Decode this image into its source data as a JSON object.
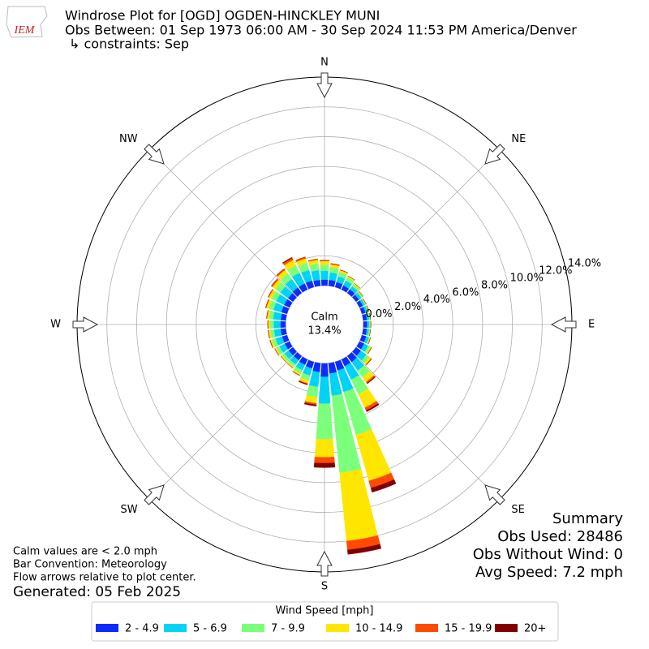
{
  "chart_data": {
    "type": "windrose",
    "title": "Windrose Plot for [OGD] OGDEN-HINCKLEY MUNI",
    "subtitle": "Obs Between: 01 Sep 1973 06:00 AM - 30 Sep 2024 11:53 PM America/Denver",
    "constraints": "↳ constraints: Sep",
    "logo": "IEM",
    "compass": [
      "N",
      "NE",
      "E",
      "SE",
      "S",
      "SW",
      "W",
      "NW"
    ],
    "directions": [
      0,
      10,
      20,
      30,
      40,
      50,
      60,
      70,
      80,
      90,
      100,
      110,
      120,
      130,
      140,
      150,
      160,
      170,
      180,
      190,
      200,
      210,
      220,
      230,
      240,
      250,
      260,
      270,
      280,
      290,
      300,
      310,
      320,
      330,
      340,
      350
    ],
    "rlim": [
      0,
      14
    ],
    "rticks": [
      {
        "value": 0,
        "label": "0.0%"
      },
      {
        "value": 2,
        "label": "2.0%"
      },
      {
        "value": 4,
        "label": "4.0%"
      },
      {
        "value": 6,
        "label": "6.0%"
      },
      {
        "value": 8,
        "label": "8.0%"
      },
      {
        "value": 10,
        "label": "10.0%"
      },
      {
        "value": 12,
        "label": "12.0%"
      },
      {
        "value": 14,
        "label": "14.0%"
      }
    ],
    "grid": true,
    "calm": {
      "name": "Calm",
      "value": 13.4,
      "value_label": "13.4%"
    },
    "legend_title": "Wind Speed [mph]",
    "series": [
      {
        "name": "2 - 4.9",
        "color": "#0c2cf8",
        "values": [
          0.4,
          0.4,
          0.35,
          0.3,
          0.3,
          0.25,
          0.25,
          0.25,
          0.25,
          0.25,
          0.25,
          0.3,
          0.35,
          0.4,
          0.5,
          0.5,
          0.6,
          0.7,
          0.9,
          0.6,
          0.45,
          0.4,
          0.35,
          0.35,
          0.35,
          0.35,
          0.35,
          0.35,
          0.35,
          0.4,
          0.4,
          0.4,
          0.45,
          0.45,
          0.45,
          0.4
        ]
      },
      {
        "name": "5 - 6.9",
        "color": "#00d3f5",
        "values": [
          0.6,
          0.5,
          0.4,
          0.35,
          0.25,
          0.2,
          0.15,
          0.15,
          0.15,
          0.15,
          0.15,
          0.18,
          0.3,
          0.45,
          0.7,
          1.0,
          1.5,
          1.5,
          1.8,
          1.0,
          0.5,
          0.4,
          0.35,
          0.35,
          0.4,
          0.45,
          0.45,
          0.45,
          0.5,
          0.55,
          0.6,
          0.65,
          0.7,
          0.8,
          0.75,
          0.65
        ]
      },
      {
        "name": "7 - 9.9",
        "color": "#7cff7a",
        "values": [
          0.4,
          0.35,
          0.3,
          0.25,
          0.15,
          0.1,
          0.07,
          0.07,
          0.07,
          0.07,
          0.07,
          0.08,
          0.15,
          0.25,
          0.55,
          1.1,
          3.0,
          5.2,
          2.4,
          0.7,
          0.35,
          0.25,
          0.2,
          0.2,
          0.22,
          0.25,
          0.25,
          0.25,
          0.28,
          0.33,
          0.35,
          0.4,
          0.45,
          0.55,
          0.5,
          0.45
        ]
      },
      {
        "name": "10 - 14.9",
        "color": "#ffe600",
        "values": [
          0.25,
          0.2,
          0.13,
          0.1,
          0.1,
          0.05,
          0.03,
          0.03,
          0.03,
          0.03,
          0.03,
          0.04,
          0.08,
          0.15,
          0.4,
          1.0,
          3.2,
          4.6,
          1.2,
          0.4,
          0.2,
          0.12,
          0.1,
          0.1,
          0.11,
          0.12,
          0.12,
          0.12,
          0.14,
          0.17,
          0.2,
          0.25,
          0.3,
          0.4,
          0.3,
          0.25
        ]
      },
      {
        "name": "15 - 19.9",
        "color": "#ff4a00",
        "values": [
          0.05,
          0.05,
          0.02,
          0,
          0,
          0,
          0,
          0,
          0,
          0,
          0,
          0,
          0.02,
          0.05,
          0.1,
          0.2,
          0.5,
          0.6,
          0.4,
          0.1,
          0.05,
          0.03,
          0,
          0,
          0.02,
          0.03,
          0.03,
          0.03,
          0.03,
          0.05,
          0.05,
          0.1,
          0.1,
          0.15,
          0.1,
          0.05
        ]
      },
      {
        "name": "20+",
        "color": "#800000",
        "values": [
          0,
          0,
          0,
          0,
          0,
          0,
          0,
          0,
          0,
          0,
          0,
          0,
          0,
          0,
          0.05,
          0.1,
          0.3,
          0.3,
          0.3,
          0.1,
          0.05,
          0,
          0,
          0,
          0,
          0,
          0,
          0,
          0,
          0,
          0,
          0,
          0,
          0.05,
          0,
          0
        ]
      }
    ],
    "summary": [
      "Summary",
      "Obs Used: 28486",
      "Obs Without Wind: 0",
      "Avg Speed: 7.2 mph"
    ],
    "notes": [
      "Calm values are < 2.0 mph",
      "Bar Convention: Meteorology",
      "Flow arrows relative to plot center."
    ],
    "generated": "Generated: 05 Feb 2025"
  }
}
